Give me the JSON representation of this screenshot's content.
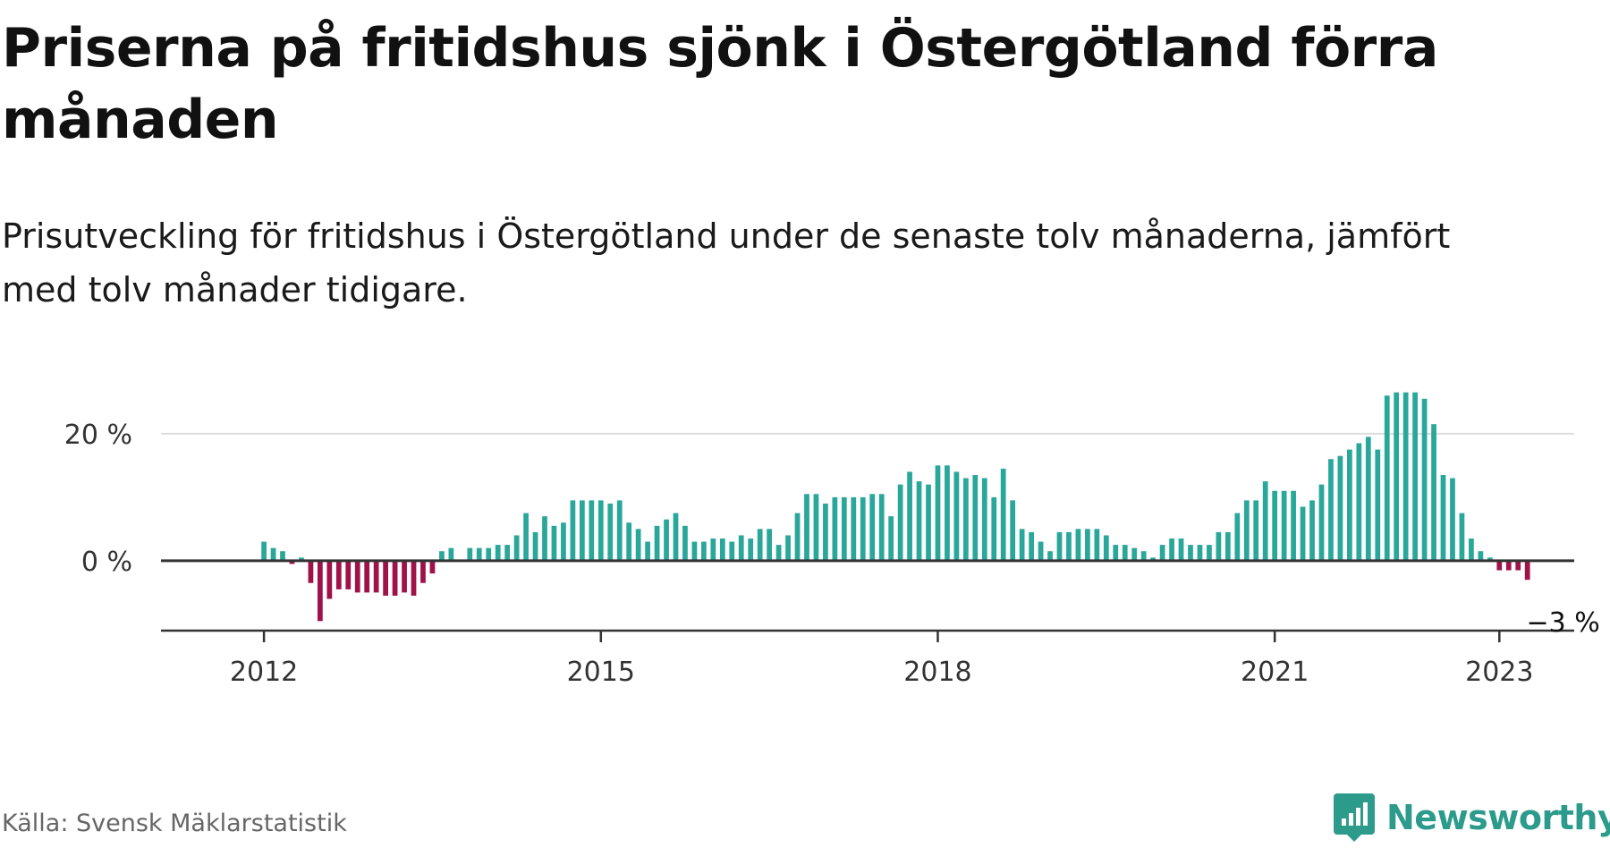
{
  "title": "Priserna på fritidshus sjönk i Östergötland förra månaden",
  "subtitle": "Prisutveckling för fritidshus i Östergötland under de senaste tolv månaderna, jämfört med tolv månader tidigare.",
  "source": "Källa: Svensk Mäklarstatistik",
  "brand": {
    "name": "Newsworthy",
    "logo_icon": "newsworthy-logo-icon"
  },
  "colors": {
    "positive": "#2aa79b",
    "negative": "#a0114a",
    "axis": "#333333",
    "grid": "#dddddd",
    "brand": "#2c9b8c"
  },
  "chart_data": {
    "type": "bar",
    "title": "",
    "xlabel": "",
    "ylabel": "",
    "y_unit": "%",
    "x_start": "2012-01",
    "xlim": [
      "2011-02",
      "2023-09"
    ],
    "ylim": [
      -11,
      28
    ],
    "grid": true,
    "y_ticks": [
      {
        "value": 0,
        "label": "0 %"
      },
      {
        "value": 20,
        "label": "20 %"
      }
    ],
    "x_ticks": [
      {
        "value": "2012-01",
        "label": "2012"
      },
      {
        "value": "2015-01",
        "label": "2015"
      },
      {
        "value": "2018-01",
        "label": "2018"
      },
      {
        "value": "2021-01",
        "label": "2021"
      },
      {
        "value": "2023-01",
        "label": "2023"
      }
    ],
    "values": [
      3,
      2,
      1.5,
      -0.5,
      0.5,
      -3.5,
      -9.5,
      -6,
      -4.5,
      -4.5,
      -5,
      -5,
      -5,
      -5.5,
      -5.5,
      -5,
      -5.5,
      -3.5,
      -2,
      1.5,
      2,
      0,
      2,
      2,
      2,
      2.5,
      2.5,
      4,
      7.5,
      4.5,
      7,
      5.5,
      6,
      9.5,
      9.5,
      9.5,
      9.5,
      9,
      9.5,
      6,
      5,
      3,
      5.5,
      6.5,
      7.5,
      5.5,
      3,
      3,
      3.5,
      3.5,
      3,
      4,
      3.5,
      5,
      5,
      2.5,
      4,
      7.5,
      10.5,
      10.5,
      9,
      10,
      10,
      10,
      10,
      10.5,
      10.5,
      7,
      12,
      14,
      12.5,
      12,
      15,
      15,
      14,
      13,
      13.5,
      13,
      10,
      14.5,
      9.5,
      5,
      4.5,
      3,
      1.5,
      4.5,
      4.5,
      5,
      5,
      5,
      4,
      2.5,
      2.5,
      2,
      1.5,
      0.5,
      2.5,
      3.5,
      3.5,
      2.5,
      2.5,
      2.5,
      4.5,
      4.5,
      7.5,
      9.5,
      9.5,
      12.5,
      11,
      11,
      11,
      8.5,
      9.5,
      12,
      16,
      16.5,
      17.5,
      18.5,
      19.5,
      17.5,
      26,
      26.5,
      26.5,
      26.5,
      25.5,
      21.5,
      13.5,
      13,
      7.5,
      3.5,
      1.5,
      0.5,
      -1.5,
      -1.5,
      -1.5,
      -3
    ],
    "annotations": [
      {
        "target": "last",
        "text": "−3 %"
      }
    ]
  }
}
